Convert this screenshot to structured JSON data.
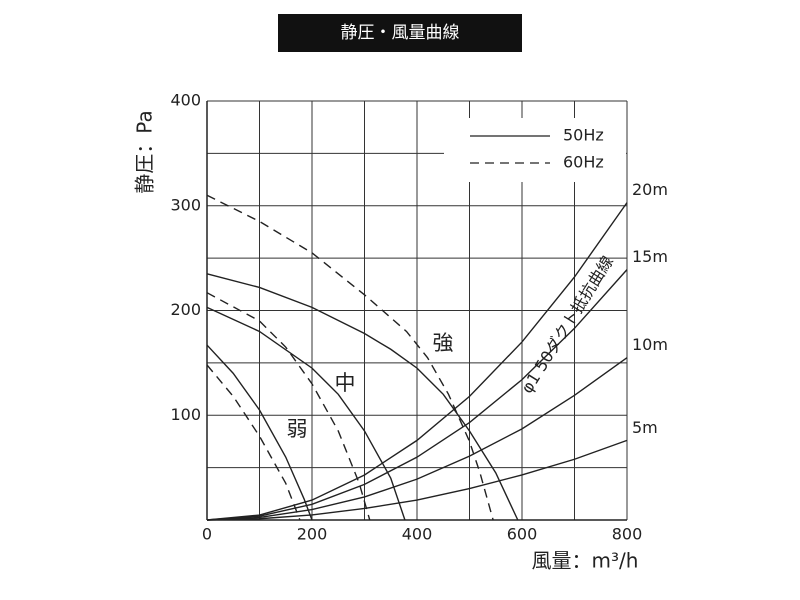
{
  "chart_data": {
    "type": "line",
    "title": "静圧・風量曲線",
    "x_label": "風量：m³/h",
    "y_label": "静圧：Pa",
    "xlim": [
      0,
      800
    ],
    "ylim": [
      0,
      400
    ],
    "xticks": [
      0,
      200,
      400,
      600,
      800
    ],
    "yticks": [
      100,
      200,
      300,
      400
    ],
    "xgrid": [
      100,
      300,
      500,
      700
    ],
    "ygrid": [
      50,
      150,
      250,
      350
    ],
    "color": "#222222",
    "legend": [
      {
        "label": "50Hz",
        "dash": "solid"
      },
      {
        "label": "60Hz",
        "dash": "dashed"
      }
    ],
    "annotations": [
      "強",
      "中",
      "弱",
      "φ1 50ダクト抵抗曲線"
    ],
    "series": [
      {
        "dash": "solid",
        "x": [
          0,
          100,
          200,
          300,
          350,
          400,
          450,
          500,
          550,
          592
        ],
        "values": [
          235,
          222,
          203,
          178,
          163,
          145,
          120,
          85,
          45,
          0
        ]
      },
      {
        "dash": "dashed",
        "x": [
          0,
          100,
          200,
          300,
          380,
          420,
          460,
          500,
          520,
          545
        ],
        "values": [
          310,
          285,
          255,
          215,
          180,
          155,
          120,
          75,
          45,
          0
        ]
      },
      {
        "dash": "solid",
        "x": [
          0,
          100,
          200,
          250,
          300,
          350,
          377
        ],
        "values": [
          203,
          180,
          145,
          120,
          85,
          40,
          0
        ]
      },
      {
        "dash": "dashed",
        "x": [
          0,
          100,
          150,
          200,
          250,
          290,
          310
        ],
        "values": [
          217,
          190,
          165,
          130,
          85,
          35,
          0
        ]
      },
      {
        "dash": "solid",
        "x": [
          0,
          50,
          100,
          150,
          185,
          200
        ],
        "values": [
          167,
          140,
          105,
          60,
          20,
          0
        ]
      },
      {
        "dash": "dashed",
        "x": [
          0,
          50,
          100,
          150,
          177
        ],
        "values": [
          148,
          118,
          80,
          35,
          0
        ]
      },
      {
        "name": "20m",
        "dash": "solid",
        "x": [
          0,
          100,
          200,
          300,
          400,
          500,
          600,
          700,
          800
        ],
        "values": [
          0,
          4.7,
          19,
          43,
          76,
          118,
          170,
          232,
          303
        ]
      },
      {
        "name": "15m",
        "dash": "solid",
        "x": [
          0,
          100,
          200,
          300,
          400,
          500,
          600,
          700,
          800
        ],
        "values": [
          0,
          3.7,
          15,
          34,
          60,
          93,
          134,
          183,
          239
        ]
      },
      {
        "name": "10m",
        "dash": "solid",
        "x": [
          0,
          100,
          200,
          300,
          400,
          500,
          600,
          700,
          800
        ],
        "values": [
          0,
          2.4,
          10,
          22,
          39,
          61,
          87,
          119,
          155
        ]
      },
      {
        "name": "5m",
        "dash": "solid",
        "x": [
          0,
          100,
          200,
          300,
          400,
          500,
          600,
          700,
          800
        ],
        "values": [
          0,
          1.2,
          4.8,
          11,
          19,
          30,
          43,
          58,
          76
        ]
      }
    ]
  }
}
